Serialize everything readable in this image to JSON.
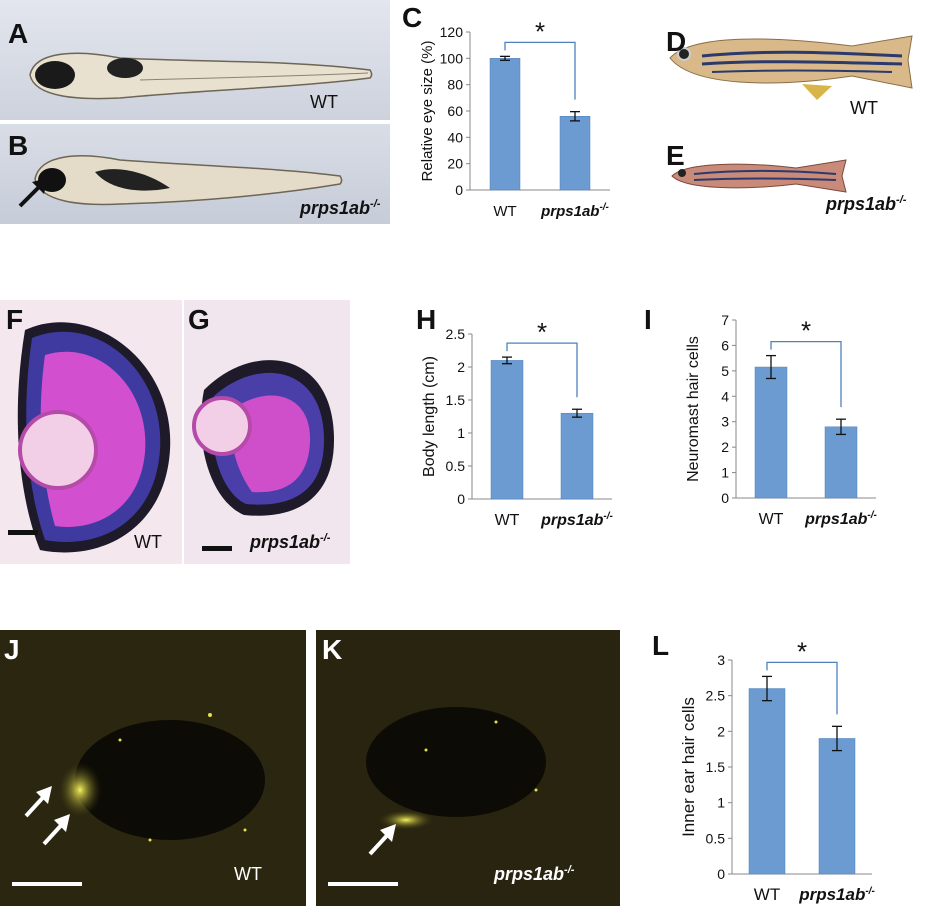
{
  "panels": {
    "A": {
      "letter": "A",
      "genotype": "WT"
    },
    "B": {
      "letter": "B",
      "genotype": "prps1ab",
      "sup": "-/-"
    },
    "D": {
      "letter": "D",
      "genotype": "WT"
    },
    "E": {
      "letter": "E",
      "genotype": "prps1ab",
      "sup": "-/-"
    },
    "F": {
      "letter": "F",
      "genotype": "WT"
    },
    "G": {
      "letter": "G",
      "genotype": "prps1ab",
      "sup": "-/-"
    },
    "J": {
      "letter": "J",
      "genotype": "WT"
    },
    "K": {
      "letter": "K",
      "genotype": "prps1ab",
      "sup": "-/-"
    }
  },
  "colors": {
    "bar": "#6b9bd1",
    "bar_edge": "#4f81bd",
    "bracket": "#4f81bd",
    "fluor": "#f2ef30"
  },
  "chart_data": [
    {
      "id": "C",
      "letter": "C",
      "type": "bar",
      "categories": [
        "WT",
        "prps1ab-/-"
      ],
      "values": [
        100,
        56
      ],
      "errors": [
        1.5,
        3.5
      ],
      "ylabel": "Relative eye size (%)",
      "ylim": [
        0,
        120
      ],
      "yticks": [
        0,
        20,
        40,
        60,
        80,
        100,
        120
      ],
      "significance": "*"
    },
    {
      "id": "H",
      "letter": "H",
      "type": "bar",
      "categories": [
        "WT",
        "prps1ab-/-"
      ],
      "values": [
        2.1,
        1.3
      ],
      "errors": [
        0.05,
        0.06
      ],
      "ylabel": "Body length (cm)",
      "ylim": [
        0,
        2.5
      ],
      "yticks": [
        0,
        0.5,
        1,
        1.5,
        2,
        2.5
      ],
      "significance": "*"
    },
    {
      "id": "I",
      "letter": "I",
      "type": "bar",
      "categories": [
        "WT",
        "prps1ab-/-"
      ],
      "values": [
        5.15,
        2.8
      ],
      "errors": [
        0.45,
        0.3
      ],
      "ylabel": "Neuromast hair cells",
      "ylim": [
        0,
        7
      ],
      "yticks": [
        0,
        1,
        2,
        3,
        4,
        5,
        6,
        7
      ],
      "significance": "*"
    },
    {
      "id": "L",
      "letter": "L",
      "type": "bar",
      "categories": [
        "WT",
        "prps1ab-/-"
      ],
      "values": [
        2.6,
        1.9
      ],
      "errors": [
        0.17,
        0.17
      ],
      "ylabel": "Inner ear hair cells",
      "ylim": [
        0,
        3
      ],
      "yticks": [
        0,
        0.5,
        1,
        1.5,
        2,
        2.5,
        3
      ],
      "significance": "*"
    }
  ]
}
